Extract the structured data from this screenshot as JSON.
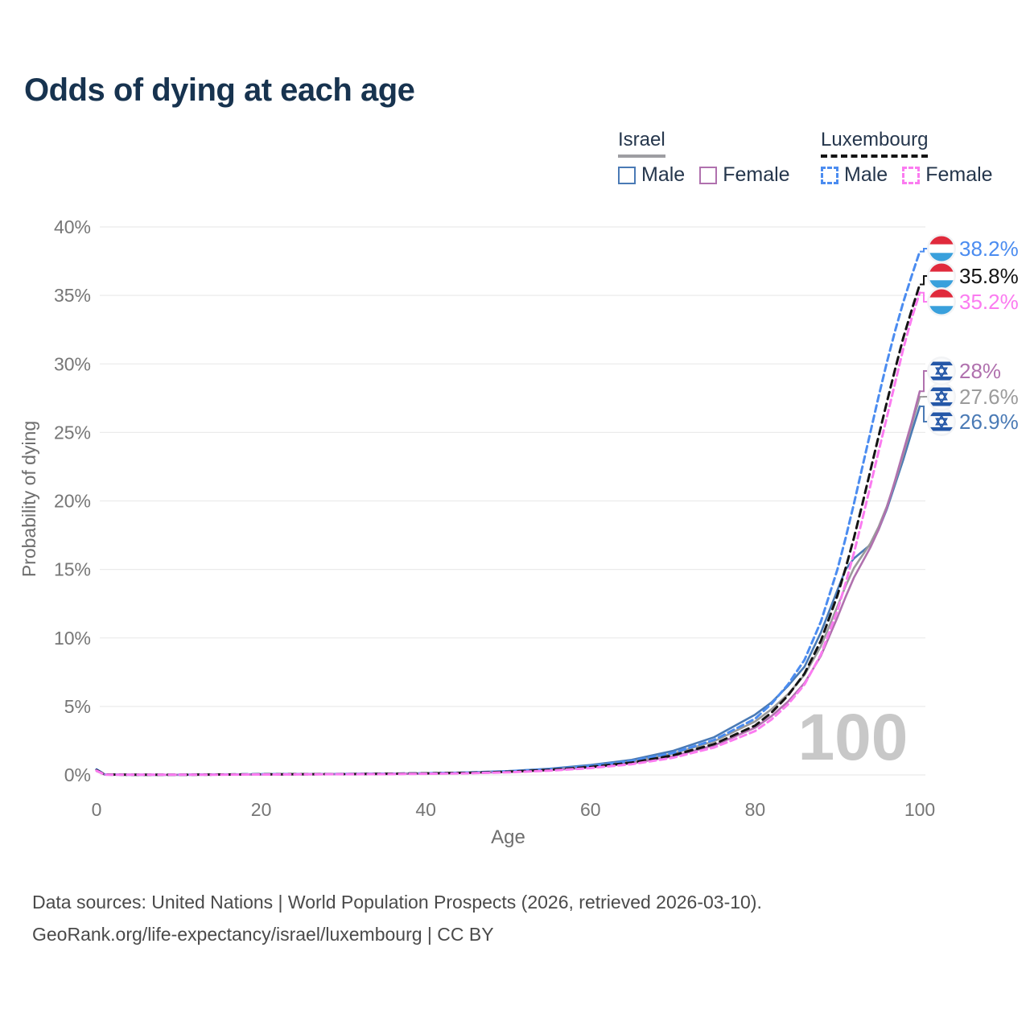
{
  "title": "Odds of dying at each age",
  "legend": {
    "groups": [
      {
        "name": "Israel",
        "underline_style": "solid",
        "underline_color": "#9e9ea2",
        "items": [
          {
            "label": "Male",
            "color": "#4a7ab5",
            "dash": false
          },
          {
            "label": "Female",
            "color": "#b071ae",
            "dash": false
          }
        ]
      },
      {
        "name": "Luxembourg",
        "underline_style": "dashed",
        "underline_color": "#141414",
        "items": [
          {
            "label": "Male",
            "color": "#4b8cf0",
            "dash": true
          },
          {
            "label": "Female",
            "color": "#fb7bf0",
            "dash": true
          }
        ]
      }
    ]
  },
  "chart_data": {
    "type": "line",
    "title": "Odds of dying at each age",
    "xlabel": "Age",
    "ylabel": "Probability of dying",
    "xlim": [
      0,
      100
    ],
    "ylim": [
      0,
      40
    ],
    "x_ticks": [
      0,
      20,
      40,
      60,
      80,
      100
    ],
    "y_ticks": [
      0,
      5,
      10,
      15,
      20,
      25,
      30,
      35,
      40
    ],
    "y_tick_suffix": "%",
    "grid": "horizontal",
    "legend_position": "top-right",
    "watermark": "100",
    "x": [
      0,
      1,
      5,
      10,
      15,
      20,
      25,
      30,
      35,
      40,
      45,
      50,
      55,
      60,
      65,
      70,
      75,
      80,
      82,
      84,
      86,
      88,
      90,
      91,
      92,
      93,
      94,
      95,
      96,
      97,
      98,
      99,
      100
    ],
    "series": [
      {
        "id": "israel-male",
        "name": "Israel Male",
        "country": "il",
        "sex": "male",
        "color": "#4a7ab5",
        "dash": null,
        "end_label": "26.9%",
        "values": [
          0.35,
          0.03,
          0.01,
          0.01,
          0.03,
          0.05,
          0.06,
          0.07,
          0.09,
          0.12,
          0.18,
          0.28,
          0.45,
          0.72,
          1.1,
          1.75,
          2.75,
          4.4,
          5.3,
          6.5,
          7.9,
          10.4,
          13.5,
          15.0,
          15.8,
          16.3,
          16.8,
          17.9,
          19.4,
          21.2,
          23.0,
          25.0,
          26.9
        ]
      },
      {
        "id": "israel-total",
        "name": "Israel",
        "country": "il",
        "sex": "both",
        "color": "#9b9b9b",
        "dash": null,
        "end_label": "27.6%",
        "values": [
          0.32,
          0.03,
          0.01,
          0.01,
          0.03,
          0.04,
          0.05,
          0.06,
          0.08,
          0.11,
          0.16,
          0.25,
          0.4,
          0.63,
          0.97,
          1.55,
          2.45,
          3.9,
          4.8,
          5.9,
          7.3,
          9.4,
          12.3,
          13.8,
          15.1,
          16.0,
          16.9,
          18.1,
          19.6,
          21.4,
          23.4,
          25.5,
          27.6
        ]
      },
      {
        "id": "israel-female",
        "name": "Israel Female",
        "country": "il",
        "sex": "female",
        "color": "#b071ae",
        "dash": null,
        "end_label": "28%",
        "values": [
          0.28,
          0.02,
          0.01,
          0.01,
          0.02,
          0.03,
          0.04,
          0.05,
          0.06,
          0.09,
          0.14,
          0.21,
          0.34,
          0.54,
          0.84,
          1.35,
          2.15,
          3.45,
          4.3,
          5.35,
          6.7,
          8.7,
          11.5,
          13.0,
          14.4,
          15.5,
          16.6,
          17.9,
          19.5,
          21.5,
          23.6,
          25.7,
          28.0
        ]
      },
      {
        "id": "luxembourg-male",
        "name": "Luxembourg Male",
        "country": "lu",
        "sex": "male",
        "color": "#4b8cf0",
        "dash": "8 5",
        "end_label": "38.2%",
        "values": [
          0.4,
          0.03,
          0.01,
          0.01,
          0.03,
          0.05,
          0.06,
          0.07,
          0.09,
          0.12,
          0.17,
          0.26,
          0.42,
          0.66,
          1.02,
          1.6,
          2.55,
          4.1,
          5.2,
          6.6,
          8.4,
          11.2,
          15.0,
          17.3,
          19.8,
          22.4,
          25.0,
          27.6,
          30.1,
          32.4,
          34.5,
          36.4,
          38.2
        ]
      },
      {
        "id": "luxembourg-total",
        "name": "Luxembourg",
        "country": "lu",
        "sex": "both",
        "color": "#141414",
        "dash": "9 6",
        "end_label": "35.8%",
        "values": [
          0.36,
          0.03,
          0.01,
          0.01,
          0.03,
          0.04,
          0.05,
          0.06,
          0.08,
          0.11,
          0.15,
          0.23,
          0.37,
          0.58,
          0.9,
          1.42,
          2.25,
          3.6,
          4.55,
          5.8,
          7.4,
          9.8,
          13.1,
          15.1,
          17.3,
          19.7,
          22.2,
          24.7,
          27.2,
          29.6,
          31.9,
          33.9,
          35.8
        ]
      },
      {
        "id": "luxembourg-female",
        "name": "Luxembourg Female",
        "country": "lu",
        "sex": "female",
        "color": "#fb7bf0",
        "dash": "8 5",
        "end_label": "35.2%",
        "values": [
          0.31,
          0.02,
          0.01,
          0.01,
          0.02,
          0.03,
          0.04,
          0.05,
          0.06,
          0.08,
          0.12,
          0.19,
          0.31,
          0.5,
          0.78,
          1.25,
          2.0,
          3.2,
          4.05,
          5.15,
          6.6,
          8.8,
          12.0,
          14.0,
          16.2,
          18.6,
          21.1,
          23.6,
          26.1,
          28.6,
          31.1,
          33.3,
          35.2
        ]
      }
    ],
    "flag_colors": {
      "lu_red": "#e02a3c",
      "lu_white": "#ffffff",
      "lu_blue": "#39a0dc",
      "il_blue": "#2457a7",
      "il_bg": "#f2f3f5"
    }
  },
  "footer": {
    "line1": "Data sources: United Nations | World Population Prospects (2026, retrieved 2026-03-10).",
    "line2": "GeoRank.org/life-expectancy/israel/luxembourg | CC BY"
  }
}
